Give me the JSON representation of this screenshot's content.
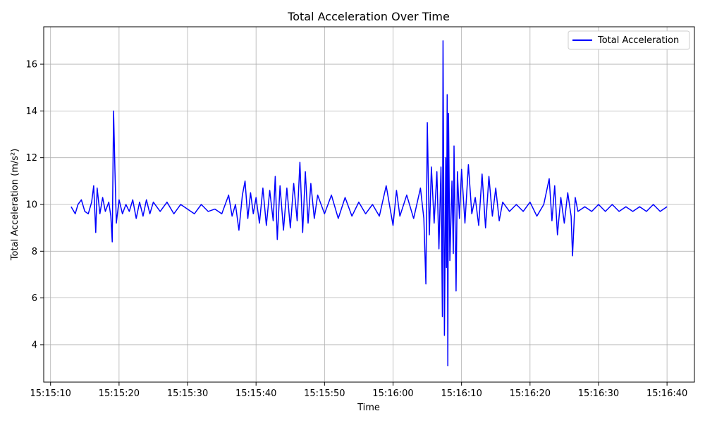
{
  "chart_data": {
    "type": "line",
    "title": "Total Acceleration Over Time",
    "xlabel": "Time",
    "ylabel": "Total Acceleration (m/s²)",
    "xlim": [
      "15:15:09",
      "15:16:44"
    ],
    "ylim": [
      2.4,
      17.6
    ],
    "x_ticks": [
      "15:15:10",
      "15:15:20",
      "15:15:30",
      "15:15:40",
      "15:15:50",
      "15:16:00",
      "15:16:10",
      "15:16:20",
      "15:16:30",
      "15:16:40"
    ],
    "y_ticks": [
      4,
      6,
      8,
      10,
      12,
      14,
      16
    ],
    "grid": true,
    "legend_position": "top-right",
    "series": [
      {
        "name": "Total Acceleration",
        "color": "#0000ff",
        "points": [
          [
            "15:15:13.0",
            9.9
          ],
          [
            "15:15:13.6",
            9.6
          ],
          [
            "15:15:14.0",
            10.0
          ],
          [
            "15:15:14.5",
            10.2
          ],
          [
            "15:15:15.0",
            9.7
          ],
          [
            "15:15:15.5",
            9.6
          ],
          [
            "15:15:16.0",
            10.1
          ],
          [
            "15:15:16.3",
            10.8
          ],
          [
            "15:15:16.6",
            8.8
          ],
          [
            "15:15:16.8",
            10.7
          ],
          [
            "15:15:17.2",
            9.6
          ],
          [
            "15:15:17.6",
            10.3
          ],
          [
            "15:15:18.0",
            9.7
          ],
          [
            "15:15:18.5",
            10.1
          ],
          [
            "15:15:18.8",
            9.5
          ],
          [
            "15:15:19.0",
            8.4
          ],
          [
            "15:15:19.2",
            14.0
          ],
          [
            "15:15:19.4",
            11.5
          ],
          [
            "15:15:19.6",
            9.2
          ],
          [
            "15:15:20.0",
            10.2
          ],
          [
            "15:15:20.5",
            9.6
          ],
          [
            "15:15:21.0",
            10.0
          ],
          [
            "15:15:21.5",
            9.7
          ],
          [
            "15:15:22.0",
            10.2
          ],
          [
            "15:15:22.5",
            9.4
          ],
          [
            "15:15:23.0",
            10.1
          ],
          [
            "15:15:23.5",
            9.5
          ],
          [
            "15:15:24.0",
            10.2
          ],
          [
            "15:15:24.5",
            9.6
          ],
          [
            "15:15:25.0",
            10.1
          ],
          [
            "15:15:26.0",
            9.7
          ],
          [
            "15:15:27.0",
            10.1
          ],
          [
            "15:15:28.0",
            9.6
          ],
          [
            "15:15:29.0",
            10.0
          ],
          [
            "15:15:30.0",
            9.8
          ],
          [
            "15:15:31.0",
            9.6
          ],
          [
            "15:15:32.0",
            10.0
          ],
          [
            "15:15:33.0",
            9.7
          ],
          [
            "15:15:34.0",
            9.8
          ],
          [
            "15:15:35.0",
            9.6
          ],
          [
            "15:15:36.0",
            10.4
          ],
          [
            "15:15:36.5",
            9.5
          ],
          [
            "15:15:37.0",
            10.0
          ],
          [
            "15:15:37.5",
            8.9
          ],
          [
            "15:15:38.0",
            10.4
          ],
          [
            "15:15:38.4",
            11.0
          ],
          [
            "15:15:38.8",
            9.4
          ],
          [
            "15:15:39.2",
            10.5
          ],
          [
            "15:15:39.6",
            9.6
          ],
          [
            "15:15:40.0",
            10.3
          ],
          [
            "15:15:40.5",
            9.2
          ],
          [
            "15:15:41.0",
            10.7
          ],
          [
            "15:15:41.5",
            9.1
          ],
          [
            "15:15:42.0",
            10.6
          ],
          [
            "15:15:42.5",
            9.3
          ],
          [
            "15:15:42.8",
            11.2
          ],
          [
            "15:15:43.1",
            8.5
          ],
          [
            "15:15:43.5",
            10.8
          ],
          [
            "15:15:44.0",
            8.9
          ],
          [
            "15:15:44.5",
            10.7
          ],
          [
            "15:15:45.0",
            9.0
          ],
          [
            "15:15:45.5",
            10.9
          ],
          [
            "15:15:46.0",
            9.3
          ],
          [
            "15:15:46.4",
            11.8
          ],
          [
            "15:15:46.8",
            8.8
          ],
          [
            "15:15:47.2",
            11.4
          ],
          [
            "15:15:47.6",
            9.2
          ],
          [
            "15:15:48.0",
            10.9
          ],
          [
            "15:15:48.5",
            9.4
          ],
          [
            "15:15:49.0",
            10.4
          ],
          [
            "15:15:50.0",
            9.6
          ],
          [
            "15:15:51.0",
            10.4
          ],
          [
            "15:15:52.0",
            9.4
          ],
          [
            "15:15:53.0",
            10.3
          ],
          [
            "15:15:54.0",
            9.5
          ],
          [
            "15:15:55.0",
            10.1
          ],
          [
            "15:15:56.0",
            9.6
          ],
          [
            "15:15:57.0",
            10.0
          ],
          [
            "15:15:58.0",
            9.5
          ],
          [
            "15:15:59.0",
            10.8
          ],
          [
            "15:16:00.0",
            9.1
          ],
          [
            "15:16:00.5",
            10.6
          ],
          [
            "15:16:01.0",
            9.5
          ],
          [
            "15:16:02.0",
            10.4
          ],
          [
            "15:16:03.0",
            9.4
          ],
          [
            "15:16:04.0",
            10.7
          ],
          [
            "15:16:04.5",
            9.4
          ],
          [
            "15:16:04.8",
            6.6
          ],
          [
            "15:16:05.0",
            13.5
          ],
          [
            "15:16:05.3",
            8.7
          ],
          [
            "15:16:05.6",
            11.6
          ],
          [
            "15:16:06.0",
            9.2
          ],
          [
            "15:16:06.4",
            11.4
          ],
          [
            "15:16:06.7",
            8.1
          ],
          [
            "15:16:07.0",
            11.6
          ],
          [
            "15:16:07.2",
            5.2
          ],
          [
            "15:16:07.3",
            17.0
          ],
          [
            "15:16:07.5",
            4.4
          ],
          [
            "15:16:07.7",
            12.0
          ],
          [
            "15:16:07.8",
            7.3
          ],
          [
            "15:16:07.9",
            14.7
          ],
          [
            "15:16:08.0",
            3.1
          ],
          [
            "15:16:08.1",
            13.9
          ],
          [
            "15:16:08.3",
            7.6
          ],
          [
            "15:16:08.6",
            11.0
          ],
          [
            "15:16:08.8",
            7.9
          ],
          [
            "15:16:08.9",
            12.5
          ],
          [
            "15:16:09.2",
            6.3
          ],
          [
            "15:16:09.4",
            11.4
          ],
          [
            "15:16:09.7",
            9.4
          ],
          [
            "15:16:10.0",
            11.5
          ],
          [
            "15:16:10.5",
            9.2
          ],
          [
            "15:16:11.0",
            11.7
          ],
          [
            "15:16:11.5",
            9.6
          ],
          [
            "15:16:12.0",
            10.3
          ],
          [
            "15:16:12.5",
            9.1
          ],
          [
            "15:16:13.0",
            11.3
          ],
          [
            "15:16:13.5",
            9.0
          ],
          [
            "15:16:14.0",
            11.2
          ],
          [
            "15:16:14.5",
            9.5
          ],
          [
            "15:16:15.0",
            10.7
          ],
          [
            "15:16:15.5",
            9.3
          ],
          [
            "15:16:16.0",
            10.1
          ],
          [
            "15:16:17.0",
            9.7
          ],
          [
            "15:16:18.0",
            10.0
          ],
          [
            "15:16:19.0",
            9.7
          ],
          [
            "15:16:20.0",
            10.1
          ],
          [
            "15:16:21.0",
            9.5
          ],
          [
            "15:16:22.0",
            10.0
          ],
          [
            "15:16:22.8",
            11.1
          ],
          [
            "15:16:23.2",
            9.3
          ],
          [
            "15:16:23.6",
            10.8
          ],
          [
            "15:16:24.0",
            8.7
          ],
          [
            "15:16:24.5",
            10.3
          ],
          [
            "15:16:25.0",
            9.2
          ],
          [
            "15:16:25.5",
            10.5
          ],
          [
            "15:16:26.0",
            9.5
          ],
          [
            "15:16:26.2",
            7.8
          ],
          [
            "15:16:26.6",
            10.3
          ],
          [
            "15:16:27.0",
            9.7
          ],
          [
            "15:16:28.0",
            9.9
          ],
          [
            "15:16:29.0",
            9.7
          ],
          [
            "15:16:30.0",
            10.0
          ],
          [
            "15:16:31.0",
            9.7
          ],
          [
            "15:16:32.0",
            10.0
          ],
          [
            "15:16:33.0",
            9.7
          ],
          [
            "15:16:34.0",
            9.9
          ],
          [
            "15:16:35.0",
            9.7
          ],
          [
            "15:16:36.0",
            9.9
          ],
          [
            "15:16:37.0",
            9.7
          ],
          [
            "15:16:38.0",
            10.0
          ],
          [
            "15:16:39.0",
            9.7
          ],
          [
            "15:16:40.0",
            9.9
          ]
        ]
      }
    ]
  }
}
